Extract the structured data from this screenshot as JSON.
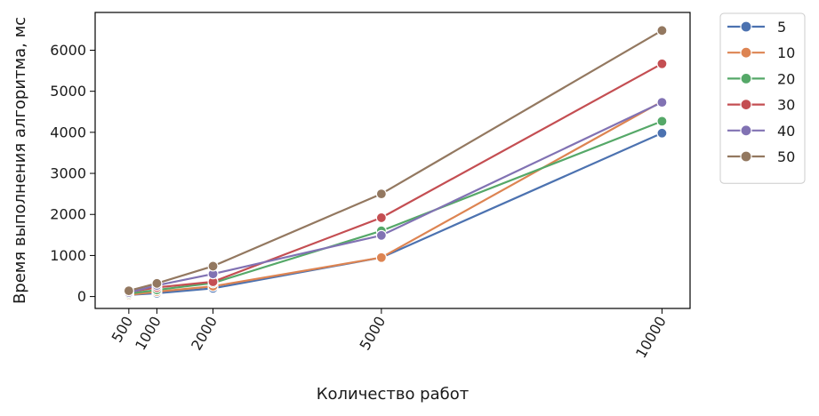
{
  "chart_data": {
    "type": "line",
    "xlabel": "Количество работ",
    "ylabel": "Время выполнения алгоритма, мс",
    "x": [
      500,
      1000,
      2000,
      5000,
      10000
    ],
    "x_tick_labels": [
      "500",
      "1000",
      "2000",
      "5000",
      "10000"
    ],
    "xlim": [
      -100,
      10500
    ],
    "ylim": [
      -290,
      6920
    ],
    "y_ticks": [
      0,
      1000,
      2000,
      3000,
      4000,
      5000,
      6000
    ],
    "y_tick_labels": [
      "0",
      "1000",
      "2000",
      "3000",
      "4000",
      "5000",
      "6000"
    ],
    "grid": false,
    "legend_position": "outside-right-top",
    "series": [
      {
        "name": "5",
        "color": "#4c72b0",
        "values": [
          40,
          80,
          200,
          950,
          3980
        ]
      },
      {
        "name": "10",
        "color": "#dd8452",
        "values": [
          40,
          120,
          250,
          950,
          4750
        ]
      },
      {
        "name": "20",
        "color": "#55a868",
        "values": [
          70,
          160,
          330,
          1600,
          4270
        ]
      },
      {
        "name": "30",
        "color": "#c44e52",
        "values": [
          110,
          220,
          360,
          1920,
          5670
        ]
      },
      {
        "name": "40",
        "color": "#8172b3",
        "values": [
          100,
          270,
          550,
          1490,
          4730
        ]
      },
      {
        "name": "50",
        "color": "#937860",
        "values": [
          140,
          320,
          740,
          2500,
          6480
        ]
      }
    ]
  }
}
